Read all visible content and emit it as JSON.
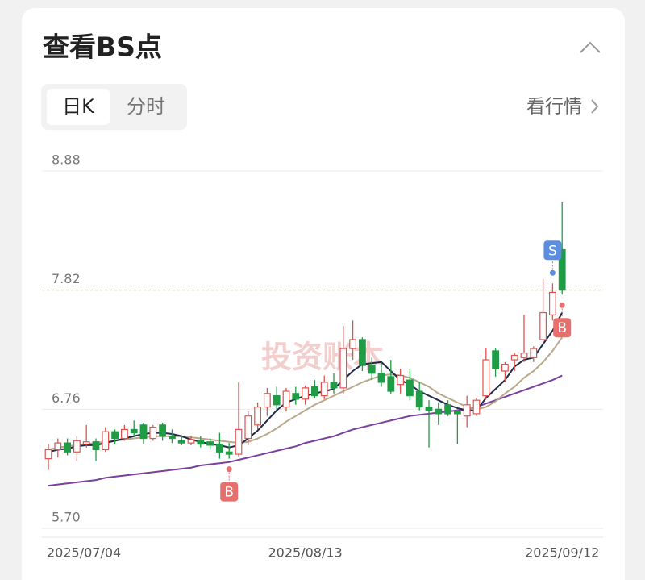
{
  "header": {
    "title": "查看BS点",
    "tabs": [
      "日K",
      "分时"
    ],
    "link": "看行情"
  },
  "watermark": "投资账本",
  "chart_data": {
    "type": "candlestick",
    "categories": [
      "2025/07/04",
      null,
      null,
      null,
      null,
      null,
      null,
      null,
      null,
      null,
      null,
      null,
      null,
      null,
      null,
      null,
      null,
      null,
      null,
      null,
      null,
      null,
      null,
      null,
      null,
      null,
      null,
      "2025/08/13",
      null,
      null,
      null,
      null,
      null,
      null,
      null,
      null,
      null,
      null,
      null,
      null,
      null,
      null,
      null,
      null,
      null,
      null,
      null,
      null,
      null,
      null,
      null,
      null,
      null,
      null,
      "2025/09/12"
    ],
    "open": [
      6.32,
      6.4,
      6.46,
      6.38,
      6.45,
      6.47,
      6.4,
      6.56,
      6.5,
      6.58,
      6.62,
      6.5,
      6.62,
      6.52,
      6.48,
      6.46,
      6.48,
      6.47,
      6.45,
      6.38,
      6.36,
      6.5,
      6.62,
      6.78,
      6.88,
      6.78,
      6.9,
      6.85,
      6.96,
      6.88,
      7.0,
      6.95,
      7.3,
      7.38,
      7.15,
      7.08,
      7.05,
      6.98,
      7.02,
      6.92,
      6.78,
      6.76,
      6.8,
      6.74,
      6.7,
      6.72,
      6.88,
      7.28,
      7.1,
      7.2,
      7.22,
      7.22,
      7.38,
      7.6,
      8.18
    ],
    "high": [
      6.45,
      6.5,
      6.5,
      6.52,
      6.62,
      6.5,
      6.6,
      6.58,
      6.62,
      6.66,
      6.64,
      6.62,
      6.64,
      6.58,
      6.53,
      6.52,
      6.52,
      6.5,
      6.55,
      6.46,
      7.0,
      6.74,
      6.82,
      6.95,
      6.96,
      6.95,
      6.96,
      6.97,
      7.02,
      7.06,
      7.08,
      7.5,
      7.55,
      7.4,
      7.22,
      7.18,
      7.2,
      7.12,
      7.12,
      7.0,
      6.84,
      6.82,
      6.84,
      6.76,
      6.88,
      6.86,
      7.3,
      7.3,
      7.18,
      7.26,
      7.6,
      7.32,
      7.92,
      7.88,
      8.6
    ],
    "low": [
      6.22,
      6.33,
      6.35,
      6.3,
      6.42,
      6.3,
      6.38,
      6.45,
      6.48,
      6.52,
      6.45,
      6.48,
      6.48,
      6.46,
      6.44,
      6.44,
      6.42,
      6.4,
      6.32,
      6.32,
      6.34,
      6.44,
      6.58,
      6.7,
      6.76,
      6.74,
      6.8,
      6.8,
      6.86,
      6.85,
      6.9,
      6.9,
      7.2,
      7.1,
      7.02,
      6.96,
      6.9,
      6.9,
      6.84,
      6.75,
      6.42,
      6.62,
      6.7,
      6.45,
      6.6,
      6.7,
      6.85,
      7.05,
      7.0,
      7.1,
      7.18,
      7.18,
      7.34,
      7.55,
      7.78
    ],
    "close": [
      6.4,
      6.46,
      6.38,
      6.48,
      6.47,
      6.4,
      6.56,
      6.5,
      6.58,
      6.55,
      6.5,
      6.6,
      6.52,
      6.5,
      6.46,
      6.49,
      6.45,
      6.44,
      6.38,
      6.36,
      6.58,
      6.7,
      6.78,
      6.9,
      6.8,
      6.92,
      6.85,
      6.95,
      6.88,
      7.0,
      6.95,
      7.3,
      7.38,
      7.15,
      7.08,
      7.0,
      6.92,
      7.06,
      6.88,
      6.78,
      6.75,
      6.72,
      6.72,
      6.72,
      6.8,
      6.84,
      7.2,
      7.12,
      7.16,
      7.24,
      7.26,
      7.3,
      7.62,
      7.8,
      7.82
    ],
    "up_color": "#e0534f",
    "down_color": "#1f9c45",
    "lines": [
      {
        "color": "#7b3f9e",
        "values": [
          6.08,
          6.09,
          6.1,
          6.11,
          6.12,
          6.13,
          6.15,
          6.16,
          6.17,
          6.18,
          6.19,
          6.2,
          6.21,
          6.22,
          6.23,
          6.24,
          6.26,
          6.27,
          6.28,
          6.29,
          6.31,
          6.33,
          6.35,
          6.37,
          6.39,
          6.41,
          6.43,
          6.46,
          6.48,
          6.5,
          6.52,
          6.55,
          6.58,
          6.6,
          6.62,
          6.64,
          6.66,
          6.68,
          6.7,
          6.71,
          6.72,
          6.73,
          6.74,
          6.75,
          6.76,
          6.78,
          6.81,
          6.84,
          6.87,
          6.9,
          6.93,
          6.96,
          6.99,
          7.02,
          7.06
        ]
      },
      {
        "color": "#b8a98a",
        "values": [
          6.4,
          6.42,
          6.43,
          6.44,
          6.45,
          6.46,
          6.47,
          6.48,
          6.49,
          6.5,
          6.51,
          6.52,
          6.52,
          6.52,
          6.52,
          6.51,
          6.5,
          6.49,
          6.48,
          6.47,
          6.46,
          6.47,
          6.5,
          6.54,
          6.59,
          6.65,
          6.7,
          6.75,
          6.8,
          6.84,
          6.88,
          6.92,
          6.96,
          7.0,
          7.03,
          7.06,
          7.07,
          7.06,
          7.04,
          7.0,
          6.96,
          6.9,
          6.86,
          6.82,
          6.78,
          6.76,
          6.78,
          6.83,
          6.9,
          6.96,
          7.04,
          7.1,
          7.18,
          7.28,
          7.4
        ]
      },
      {
        "color": "#1e2a4a",
        "values": [
          6.38,
          6.4,
          6.41,
          6.43,
          6.44,
          6.44,
          6.46,
          6.48,
          6.5,
          6.52,
          6.54,
          6.55,
          6.55,
          6.54,
          6.52,
          6.49,
          6.47,
          6.45,
          6.44,
          6.42,
          6.44,
          6.5,
          6.57,
          6.66,
          6.75,
          6.82,
          6.85,
          6.88,
          6.9,
          6.92,
          6.94,
          7.02,
          7.1,
          7.16,
          7.17,
          7.18,
          7.1,
          7.02,
          6.98,
          6.92,
          6.88,
          6.84,
          6.8,
          6.77,
          6.75,
          6.75,
          6.86,
          6.94,
          7.02,
          7.14,
          7.2,
          7.22,
          7.34,
          7.46,
          7.62
        ]
      }
    ],
    "signals": [
      {
        "label": "B",
        "index": 19
      },
      {
        "label": "S",
        "index": 53
      },
      {
        "label": "B",
        "index": 54
      }
    ],
    "ylim": [
      5.7,
      8.88
    ],
    "yticks": [
      8.88,
      7.82,
      6.76,
      {
        "value": 5.7,
        "label": "5.70"
      }
    ],
    "grid": true
  }
}
